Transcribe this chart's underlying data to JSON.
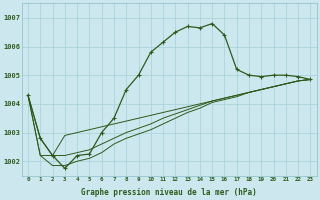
{
  "xlabel": "Graphe pression niveau de la mer (hPa)",
  "bg_color": "#cce8ee",
  "grid_color": "#aad4dc",
  "line_color": "#2d5a1b",
  "xtick_labels": [
    "0",
    "1",
    "2",
    "3",
    "4",
    "5",
    "6",
    "7",
    "8",
    "9",
    "10",
    "11",
    "12",
    "13",
    "14",
    "15",
    "16",
    "17",
    "18",
    "19",
    "20",
    "21",
    "22",
    "23"
  ],
  "ylim": [
    1001.5,
    1007.5
  ],
  "yticks": [
    1002,
    1003,
    1004,
    1005,
    1006,
    1007
  ],
  "series_main": [
    1004.3,
    1002.8,
    1002.2,
    1001.75,
    1002.2,
    1002.25,
    1003.0,
    1003.5,
    1004.5,
    1005.0,
    1005.8,
    1006.15,
    1006.5,
    1006.7,
    1006.65,
    1006.8,
    1006.4,
    1005.2,
    1005.0,
    1004.95,
    1005.0,
    1005.0,
    1004.95,
    1004.85
  ],
  "series_flat": [
    [
      1004.3,
      1002.8,
      1002.2,
      1002.9,
      1003.0,
      1003.1,
      1003.2,
      1003.3,
      1003.4,
      1003.5,
      1003.6,
      1003.7,
      1003.8,
      1003.9,
      1004.0,
      1004.1,
      1004.2,
      1004.3,
      1004.4,
      1004.5,
      1004.6,
      1004.7,
      1004.8,
      1004.85
    ],
    [
      1004.3,
      1002.2,
      1002.2,
      1002.2,
      1002.3,
      1002.4,
      1002.6,
      1002.8,
      1003.0,
      1003.15,
      1003.3,
      1003.5,
      1003.65,
      1003.8,
      1003.95,
      1004.1,
      1004.2,
      1004.3,
      1004.4,
      1004.5,
      1004.6,
      1004.7,
      1004.8,
      1004.85
    ],
    [
      1004.3,
      1002.2,
      1001.85,
      1001.85,
      1002.0,
      1002.1,
      1002.3,
      1002.6,
      1002.8,
      1002.95,
      1003.1,
      1003.3,
      1003.5,
      1003.7,
      1003.85,
      1004.05,
      1004.15,
      1004.25,
      1004.4,
      1004.5,
      1004.6,
      1004.7,
      1004.8,
      1004.85
    ]
  ]
}
